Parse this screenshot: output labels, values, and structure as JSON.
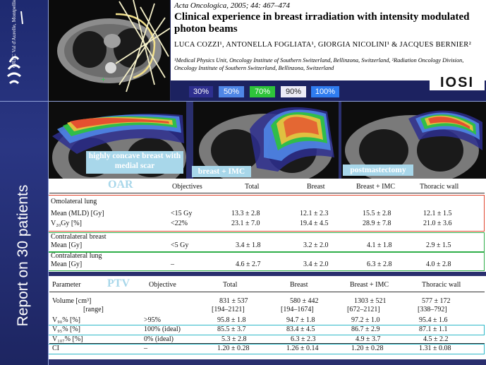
{
  "sidebar": {
    "institution": "CRLC Val d'Aurelle, Montpellier",
    "vertical_title": "Report on 30 patients"
  },
  "paper": {
    "journal": "Acta Oncologica, 2005; 44: 467–474",
    "title": "Clinical experience in breast irradiation with intensity modulated photon beams",
    "authors": "LUCA COZZI¹, ANTONELLA FOGLIATA¹, GIORGIA NICOLINI¹ & JACQUES BERNIER²",
    "affiliation": "¹Medical Physics Unit, Oncology Institute of Southern Switzerland, Bellinzona, Switzerland, ²Radiation Oncology Division, Oncology Institute of Southern Switzerland, Bellinzona, Switzerland"
  },
  "logo_text": "IOSI",
  "isodose_legend": [
    {
      "label": "30%",
      "color": "#2e2f8f"
    },
    {
      "label": "50%",
      "color": "#4f86e6"
    },
    {
      "label": "70%",
      "color": "#2ec43a"
    },
    {
      "label": "90%",
      "color": "#ecebf6"
    },
    {
      "label": "100%",
      "color": "#2f7cf0"
    }
  ],
  "ct_labels": {
    "left": "highly concave breast with medial scar",
    "middle": "breast + IMC",
    "right": "postmastectomy"
  },
  "oar_table": {
    "section_title": "OAR",
    "headers": [
      "Objectives",
      "Total",
      "Breast",
      "Breast + IMC",
      "Thoracic wall"
    ],
    "groups": [
      {
        "name": "Omolateral lung",
        "rows": [
          {
            "label": "Mean (MLD) [Gy]",
            "objective": "<15 Gy",
            "values": [
              "13.3 ± 2.8",
              "12.1 ± 2.3",
              "15.5 ± 2.8",
              "12.1 ± 1.5"
            ]
          },
          {
            "label": "V₂₀Gy [%]",
            "objective": "<22%",
            "values": [
              "23.1 ± 7.0",
              "19.4 ± 4.5",
              "28.9 ± 7.8",
              "21.0 ± 3.6"
            ]
          }
        ]
      },
      {
        "name": "Contralateral breast",
        "rows": [
          {
            "label": "Mean [Gy]",
            "objective": "<5 Gy",
            "values": [
              "3.4 ± 1.8",
              "3.2 ± 2.0",
              "4.1 ± 1.8",
              "2.9 ± 1.5"
            ]
          }
        ]
      },
      {
        "name": "Contralateral lung",
        "rows": [
          {
            "label": "Mean [Gy]",
            "objective": "–",
            "values": [
              "4.6 ± 2.7",
              "3.4 ± 2.0",
              "6.3 ± 2.8",
              "4.0 ± 2.8"
            ]
          }
        ]
      }
    ]
  },
  "ptv_table": {
    "section_title": "PTV",
    "headers": [
      "Parameter",
      "Objective",
      "Total",
      "Breast",
      "Breast + IMC",
      "Thoracic wall"
    ],
    "rows": [
      {
        "label": "Volume [cm³]",
        "objective": "",
        "values": [
          "831 ± 537",
          "580 ± 442",
          "1303 ± 521",
          "577 ± 172"
        ]
      },
      {
        "label": "[range]",
        "objective": "",
        "values": [
          "[194–2121]",
          "[194–1674]",
          "[672–2121]",
          "[338–792]"
        ]
      },
      {
        "label": "V₉₀% [%]",
        "objective": ">95%",
        "values": [
          "95.8 ± 1.8",
          "94.7 ± 1.8",
          "97.2 ± 1.0",
          "95.4 ± 1.6"
        ]
      },
      {
        "label": "V₉₅% [%]",
        "objective": "100% (ideal)",
        "values": [
          "85.5 ± 3.7",
          "83.4 ± 4.5",
          "86.7 ± 2.9",
          "87.1 ± 1.1"
        ]
      },
      {
        "label": "V₁₀₇% [%]",
        "objective": "0% (ideal)",
        "values": [
          "5.3 ± 2.8",
          "6.3 ± 2.3",
          "4.9 ± 3.7",
          "4.5 ± 2.2"
        ]
      },
      {
        "label": "CI",
        "objective": "–",
        "values": [
          "1.20 ± 0.28",
          "1.26 ± 0.14",
          "1.20 ± 0.28",
          "1.31 ± 0.08"
        ]
      }
    ]
  }
}
